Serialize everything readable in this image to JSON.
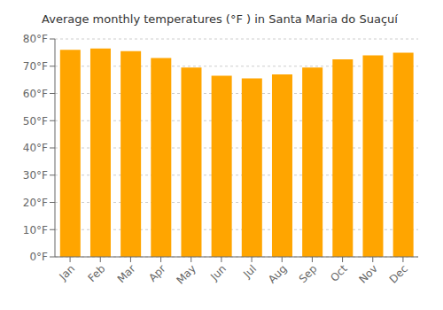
{
  "chart_data": {
    "type": "bar",
    "title": "Average monthly temperatures (°F ) in Santa Maria do Suaçuí",
    "categories": [
      "Jan",
      "Feb",
      "Mar",
      "Apr",
      "May",
      "Jun",
      "Jul",
      "Aug",
      "Sep",
      "Oct",
      "Nov",
      "Dec"
    ],
    "values": [
      76.0,
      76.5,
      75.5,
      73.0,
      69.5,
      66.5,
      65.5,
      67.0,
      69.5,
      72.5,
      74.0,
      75.0
    ],
    "color": "#FFA500",
    "ylim": [
      0,
      80
    ],
    "yticks": [
      {
        "value": 0,
        "label": "0°F"
      },
      {
        "value": 10,
        "label": "10°F"
      },
      {
        "value": 20,
        "label": "20°F"
      },
      {
        "value": 30,
        "label": "30°F"
      },
      {
        "value": 40,
        "label": "40°F"
      },
      {
        "value": 50,
        "label": "50°F"
      },
      {
        "value": 60,
        "label": "60°F"
      },
      {
        "value": 70,
        "label": "70°F"
      },
      {
        "value": 80,
        "label": "80°F"
      }
    ],
    "grid": true
  }
}
